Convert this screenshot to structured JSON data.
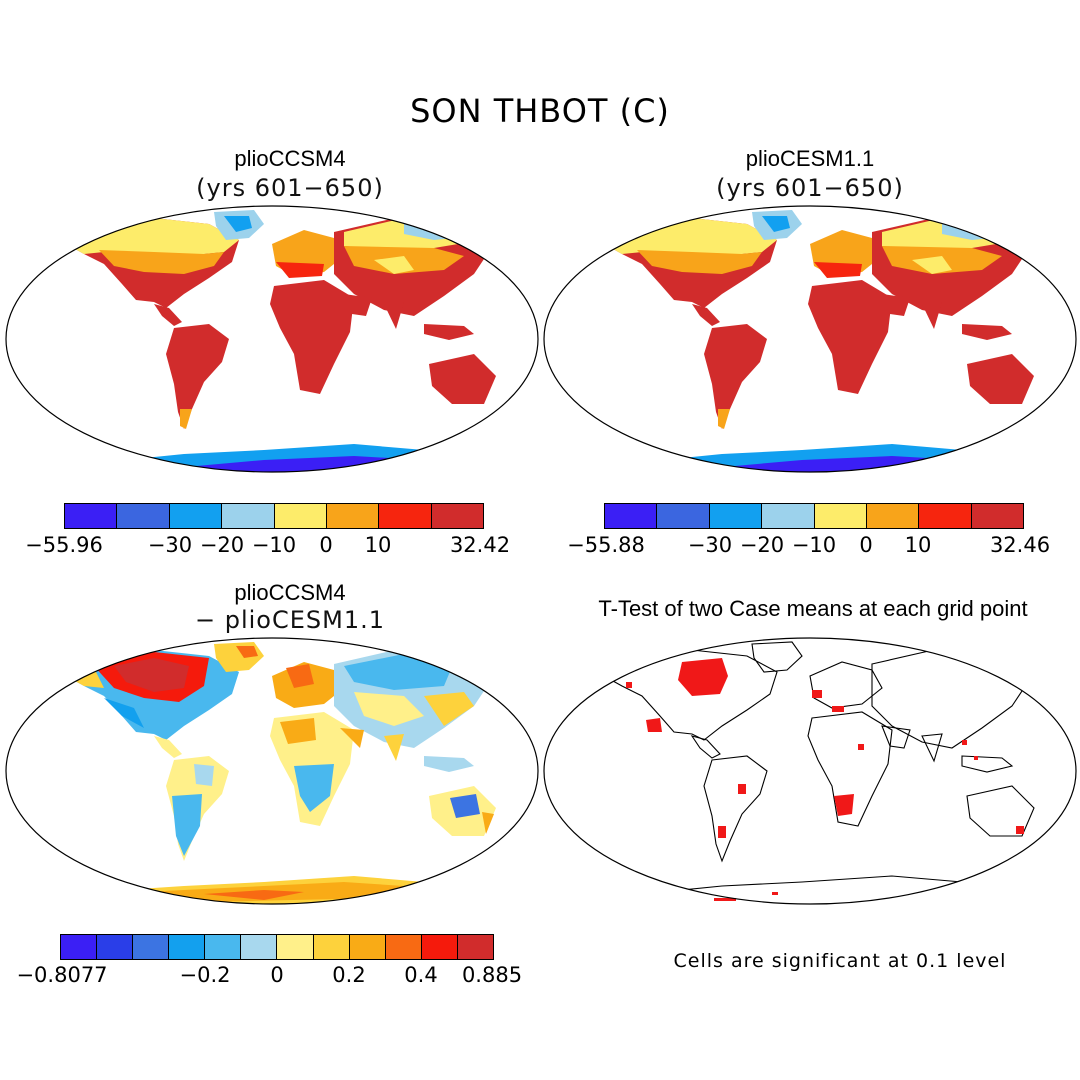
{
  "figure": {
    "title": "SON THBOT (C)"
  },
  "panels": [
    {
      "id": "ccsm4",
      "title": "plioCCSM4",
      "subtitle": "(yrs 601−650)",
      "colorbar": {
        "colors": [
          "#3b1ff5",
          "#3b66e0",
          "#12a0f0",
          "#9cd2ec",
          "#fdec6a",
          "#f8a41a",
          "#f6250e",
          "#d12c2c"
        ],
        "tick_labels": [
          "−55.96",
          "−30",
          "−20",
          "−10",
          "0",
          "10",
          "32.42"
        ]
      }
    },
    {
      "id": "cesm11",
      "title": "plioCESM1.1",
      "subtitle": "(yrs 601−650)",
      "colorbar": {
        "colors": [
          "#3b1ff5",
          "#3b66e0",
          "#12a0f0",
          "#9cd2ec",
          "#fdec6a",
          "#f8a41a",
          "#f6250e",
          "#d12c2c"
        ],
        "tick_labels": [
          "−55.88",
          "−30",
          "−20",
          "−10",
          "0",
          "10",
          "32.46"
        ]
      }
    },
    {
      "id": "diff",
      "title": "plioCCSM4",
      "subtitle": "− plioCESM1.1",
      "colorbar": {
        "colors": [
          "#3b1ff5",
          "#2a3ee8",
          "#3c74e2",
          "#13a0ee",
          "#49b8ee",
          "#a8d8ee",
          "#fff08a",
          "#fdd23c",
          "#f9ab16",
          "#f86a13",
          "#f51a0c",
          "#d12c2c"
        ],
        "tick_labels": [
          "−0.8077",
          "−0.2",
          "0",
          "0.2",
          "0.4",
          "0.885"
        ]
      }
    },
    {
      "id": "ttest",
      "title": "T-Test of two Case means at each grid point",
      "note": "Cells are significant at 0.1 level"
    }
  ],
  "colors": {
    "warm": "#d12c2c",
    "hot": "#f6250e",
    "orange": "#f8a41a",
    "yellow": "#fdec6a",
    "lightblue": "#9cd2ec",
    "blue": "#12a0f0",
    "deepblue": "#3b66e0",
    "violet": "#3b1ff5",
    "signif": "#f01818"
  }
}
